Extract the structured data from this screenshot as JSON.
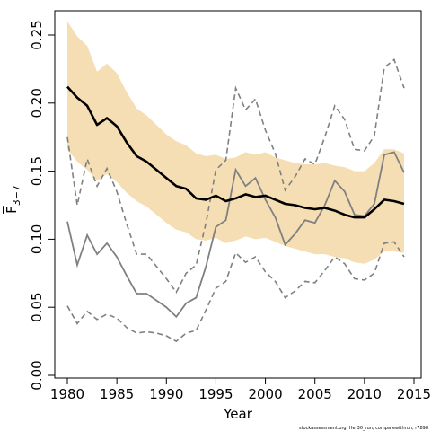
{
  "chart_data": {
    "type": "line",
    "xlabel": "Year",
    "ylabel": "F",
    "ylabel_subscript": "3−7",
    "footnote": "stockassessment.org, Her30_run, comparewithrun, r7898",
    "xlim": [
      1980,
      2014
    ],
    "ylim": [
      0,
      0.25
    ],
    "x_ticks": [
      "1980",
      "1985",
      "1990",
      "1995",
      "2000",
      "2005",
      "2010",
      "2015"
    ],
    "y_ticks": [
      "0.00",
      "0.05",
      "0.10",
      "0.15",
      "0.20",
      "0.25"
    ],
    "x": [
      1980,
      1981,
      1982,
      1983,
      1984,
      1985,
      1986,
      1987,
      1988,
      1989,
      1990,
      1991,
      1992,
      1993,
      1994,
      1995,
      1996,
      1997,
      1998,
      1999,
      2000,
      2001,
      2002,
      2003,
      2004,
      2005,
      2006,
      2007,
      2008,
      2009,
      2010,
      2011,
      2012,
      2013,
      2014
    ],
    "colors": {
      "band": "#f5deb3",
      "estimate": "#000000",
      "comparison": "#808080"
    },
    "series": [
      {
        "role": "band_upper",
        "values": [
          0.26,
          0.249,
          0.242,
          0.223,
          0.229,
          0.222,
          0.208,
          0.196,
          0.191,
          0.184,
          0.177,
          0.172,
          0.169,
          0.163,
          0.161,
          0.162,
          0.159,
          0.16,
          0.164,
          0.162,
          0.164,
          0.16,
          0.158,
          0.156,
          0.155,
          0.155,
          0.156,
          0.154,
          0.153,
          0.15,
          0.15,
          0.156,
          0.166,
          0.166,
          0.163
        ]
      },
      {
        "role": "band_lower",
        "values": [
          0.166,
          0.157,
          0.151,
          0.143,
          0.148,
          0.142,
          0.134,
          0.128,
          0.124,
          0.118,
          0.112,
          0.107,
          0.105,
          0.1,
          0.099,
          0.101,
          0.097,
          0.099,
          0.102,
          0.1,
          0.101,
          0.098,
          0.095,
          0.093,
          0.091,
          0.089,
          0.089,
          0.087,
          0.086,
          0.083,
          0.082,
          0.085,
          0.091,
          0.091,
          0.09
        ]
      },
      {
        "role": "estimate",
        "values": [
          0.212,
          0.204,
          0.198,
          0.184,
          0.189,
          0.183,
          0.171,
          0.161,
          0.157,
          0.151,
          0.145,
          0.139,
          0.137,
          0.13,
          0.129,
          0.132,
          0.128,
          0.13,
          0.133,
          0.131,
          0.132,
          0.129,
          0.126,
          0.125,
          0.123,
          0.122,
          0.123,
          0.121,
          0.118,
          0.116,
          0.116,
          0.122,
          0.129,
          0.128,
          0.126
        ]
      },
      {
        "role": "comparison",
        "values": [
          0.113,
          0.081,
          0.103,
          0.089,
          0.097,
          0.087,
          0.073,
          0.06,
          0.06,
          0.055,
          0.05,
          0.043,
          0.053,
          0.057,
          0.08,
          0.109,
          0.114,
          0.151,
          0.139,
          0.145,
          0.129,
          0.116,
          0.096,
          0.104,
          0.114,
          0.112,
          0.125,
          0.143,
          0.135,
          0.118,
          0.117,
          0.126,
          0.162,
          0.164,
          0.149
        ]
      },
      {
        "role": "comparison_upper",
        "values": [
          0.175,
          0.125,
          0.159,
          0.139,
          0.152,
          0.135,
          0.111,
          0.089,
          0.089,
          0.08,
          0.071,
          0.061,
          0.075,
          0.081,
          0.112,
          0.151,
          0.158,
          0.211,
          0.195,
          0.203,
          0.18,
          0.163,
          0.136,
          0.146,
          0.159,
          0.155,
          0.175,
          0.198,
          0.188,
          0.166,
          0.165,
          0.176,
          0.226,
          0.232,
          0.211
        ]
      },
      {
        "role": "comparison_lower",
        "values": [
          0.051,
          0.038,
          0.047,
          0.041,
          0.045,
          0.042,
          0.035,
          0.031,
          0.032,
          0.031,
          0.029,
          0.025,
          0.031,
          0.033,
          0.048,
          0.064,
          0.069,
          0.09,
          0.083,
          0.087,
          0.076,
          0.069,
          0.057,
          0.062,
          0.069,
          0.068,
          0.077,
          0.087,
          0.082,
          0.071,
          0.07,
          0.075,
          0.097,
          0.098,
          0.087
        ]
      }
    ]
  }
}
